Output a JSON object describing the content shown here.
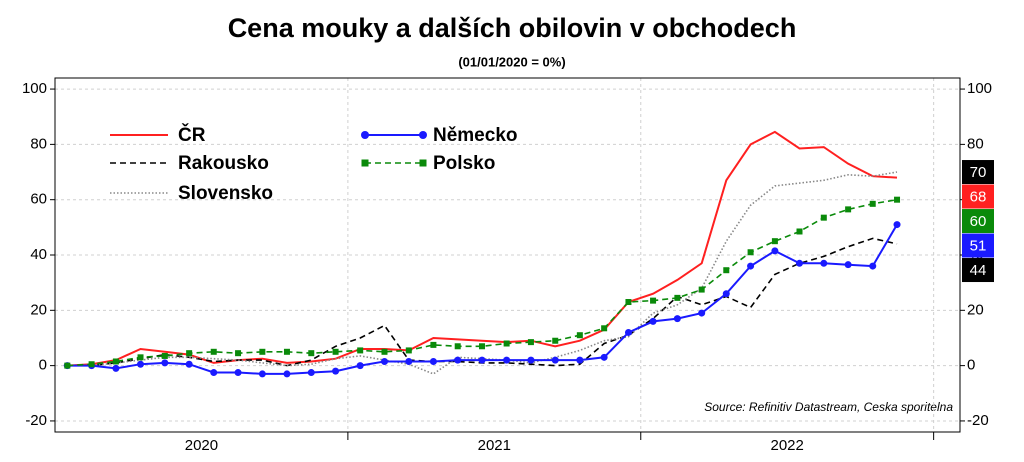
{
  "chart_data": {
    "type": "line",
    "title": "Cena mouky a dalších obilovin v obchodech",
    "subtitle": "(01/01/2020 = 0%)",
    "source": "Source: Refinitiv Datastream, Ceska sporitelna",
    "x": [
      2020.042,
      2020.125,
      2020.208,
      2020.292,
      2020.375,
      2020.458,
      2020.542,
      2020.625,
      2020.708,
      2020.792,
      2020.875,
      2020.958,
      2021.042,
      2021.125,
      2021.208,
      2021.292,
      2021.375,
      2021.458,
      2021.542,
      2021.625,
      2021.708,
      2021.792,
      2021.875,
      2021.958,
      2022.042,
      2022.125,
      2022.208,
      2022.292,
      2022.375,
      2022.458,
      2022.542,
      2022.625,
      2022.708,
      2022.792,
      2022.875
    ],
    "xlim": [
      2020,
      2023.09
    ],
    "xticks": [
      2021,
      2022,
      2023
    ],
    "years": [
      2020,
      2021,
      2022
    ],
    "ylim": [
      -24,
      104
    ],
    "yticks": [
      100,
      80,
      60,
      40,
      20,
      0,
      -20
    ],
    "grid": true,
    "series": [
      {
        "name": "ČR",
        "color": "#ff2020",
        "style": "solid",
        "marker": "none",
        "values": [
          0,
          0.5,
          2,
          6,
          5,
          4,
          1,
          2,
          2.5,
          1,
          1.5,
          2.5,
          6,
          6,
          5.5,
          10,
          9.5,
          9,
          8.5,
          9,
          7,
          9,
          13,
          23,
          26,
          31,
          37,
          67,
          80,
          84.5,
          78.5,
          79,
          73,
          68.5,
          68
        ]
      },
      {
        "name": "Rakousko",
        "color": "#000000",
        "style": "dashed",
        "marker": "none",
        "values": [
          0,
          0,
          1,
          2.5,
          4,
          3,
          1.5,
          2,
          2,
          0,
          2,
          7,
          10,
          14.5,
          2,
          1.5,
          1.5,
          1,
          1,
          0.5,
          0,
          0.5,
          8,
          11,
          17,
          25,
          22,
          25,
          21,
          33,
          37,
          39.5,
          43,
          46,
          44
        ]
      },
      {
        "name": "Slovensko",
        "color": "#888888",
        "label_color": "#000000",
        "style": "dotted",
        "marker": "none",
        "values": [
          0,
          0,
          1,
          2,
          3,
          3,
          2.5,
          2,
          1,
          0,
          0.5,
          2.5,
          3.5,
          2,
          0.5,
          -3,
          3,
          2.5,
          2,
          1,
          3,
          5.5,
          9,
          10.5,
          19,
          22,
          28,
          45,
          58,
          65,
          66,
          67,
          69,
          68.5,
          70
        ]
      },
      {
        "name": "Německo",
        "color": "#1a1aff",
        "style": "solid",
        "marker": "circle",
        "values": [
          0,
          0,
          -1,
          0.5,
          1,
          0.5,
          -2.5,
          -2.5,
          -3,
          -3,
          -2.5,
          -2,
          0,
          1.5,
          1.5,
          1.5,
          2,
          2,
          2,
          2,
          2,
          2,
          3,
          12,
          16,
          17,
          19,
          26,
          36,
          41.5,
          37,
          37,
          36.5,
          36,
          51
        ]
      },
      {
        "name": "Polsko",
        "color": "#0a8a0a",
        "style": "dashed",
        "marker": "square",
        "values": [
          0,
          0.5,
          1.5,
          3,
          3.5,
          4.5,
          5,
          4.5,
          5,
          5,
          4.5,
          5,
          5.5,
          5,
          5.5,
          7.5,
          7,
          7,
          8,
          8.5,
          9,
          11,
          13.5,
          23,
          23.5,
          24.5,
          27.5,
          34.5,
          41,
          45,
          48.5,
          53.5,
          56.5,
          58.5,
          60
        ]
      }
    ]
  }
}
